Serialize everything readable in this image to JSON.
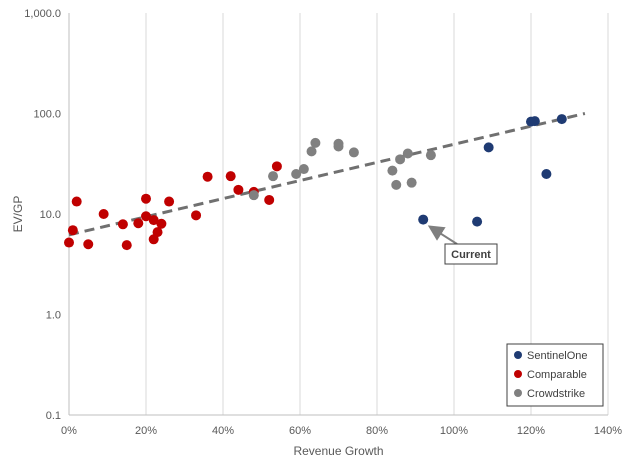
{
  "chart_data": {
    "type": "scatter",
    "title": "",
    "xlabel": "Revenue Growth",
    "ylabel": "EV/GP",
    "x_unit": "percent",
    "xlim": [
      0,
      140
    ],
    "ylim": [
      0.1,
      1000
    ],
    "y_scale": "log",
    "x_ticks": [
      "0%",
      "20%",
      "40%",
      "60%",
      "80%",
      "100%",
      "120%",
      "140%"
    ],
    "y_ticks": [
      "0.1",
      "1.0",
      "10.0",
      "100.0",
      "1,000.0"
    ],
    "grid": "vertical gridlines",
    "legend_position": "bottom-right",
    "colors": {
      "SentinelOne": "#1f3b73",
      "Comparable": "#c00000",
      "Crowdstrike": "#808080",
      "trendline": "#707070"
    },
    "series": [
      {
        "name": "SentinelOne",
        "points": [
          {
            "x": 92,
            "y": 8.8
          },
          {
            "x": 106,
            "y": 8.4
          },
          {
            "x": 109,
            "y": 46
          },
          {
            "x": 120,
            "y": 83
          },
          {
            "x": 121,
            "y": 84
          },
          {
            "x": 124,
            "y": 25
          },
          {
            "x": 128,
            "y": 88
          }
        ]
      },
      {
        "name": "Comparable",
        "points": [
          {
            "x": 0,
            "y": 5.2
          },
          {
            "x": 1,
            "y": 6.9
          },
          {
            "x": 2,
            "y": 13.3
          },
          {
            "x": 5,
            "y": 5.0
          },
          {
            "x": 9,
            "y": 10.0
          },
          {
            "x": 14,
            "y": 7.9
          },
          {
            "x": 15,
            "y": 4.9
          },
          {
            "x": 18,
            "y": 8.1
          },
          {
            "x": 20,
            "y": 14.2
          },
          {
            "x": 20,
            "y": 9.5
          },
          {
            "x": 22,
            "y": 5.6
          },
          {
            "x": 22,
            "y": 8.7
          },
          {
            "x": 23,
            "y": 6.6
          },
          {
            "x": 24,
            "y": 8.0
          },
          {
            "x": 26,
            "y": 13.3
          },
          {
            "x": 33,
            "y": 9.7
          },
          {
            "x": 36,
            "y": 23.5
          },
          {
            "x": 42,
            "y": 23.8
          },
          {
            "x": 44,
            "y": 17.4
          },
          {
            "x": 48,
            "y": 16.6
          },
          {
            "x": 52,
            "y": 13.8
          },
          {
            "x": 54,
            "y": 29.8
          }
        ]
      },
      {
        "name": "Crowdstrike",
        "points": [
          {
            "x": 48,
            "y": 15.4
          },
          {
            "x": 53,
            "y": 23.8
          },
          {
            "x": 59,
            "y": 25.0
          },
          {
            "x": 61,
            "y": 28.0
          },
          {
            "x": 63,
            "y": 42.0
          },
          {
            "x": 64,
            "y": 51.0
          },
          {
            "x": 70,
            "y": 47.0
          },
          {
            "x": 70,
            "y": 50.0
          },
          {
            "x": 74,
            "y": 41.0
          },
          {
            "x": 84,
            "y": 27.0
          },
          {
            "x": 85,
            "y": 19.5
          },
          {
            "x": 86,
            "y": 35.0
          },
          {
            "x": 88,
            "y": 40.0
          },
          {
            "x": 89,
            "y": 20.5
          },
          {
            "x": 94,
            "y": 38.5
          }
        ]
      }
    ],
    "trendline": {
      "style": "dashed",
      "points": [
        {
          "x": 0,
          "y": 6.2
        },
        {
          "x": 134,
          "y": 100
        }
      ]
    },
    "annotations": [
      {
        "text": "Current",
        "x": 92,
        "y": 8.8
      }
    ]
  }
}
